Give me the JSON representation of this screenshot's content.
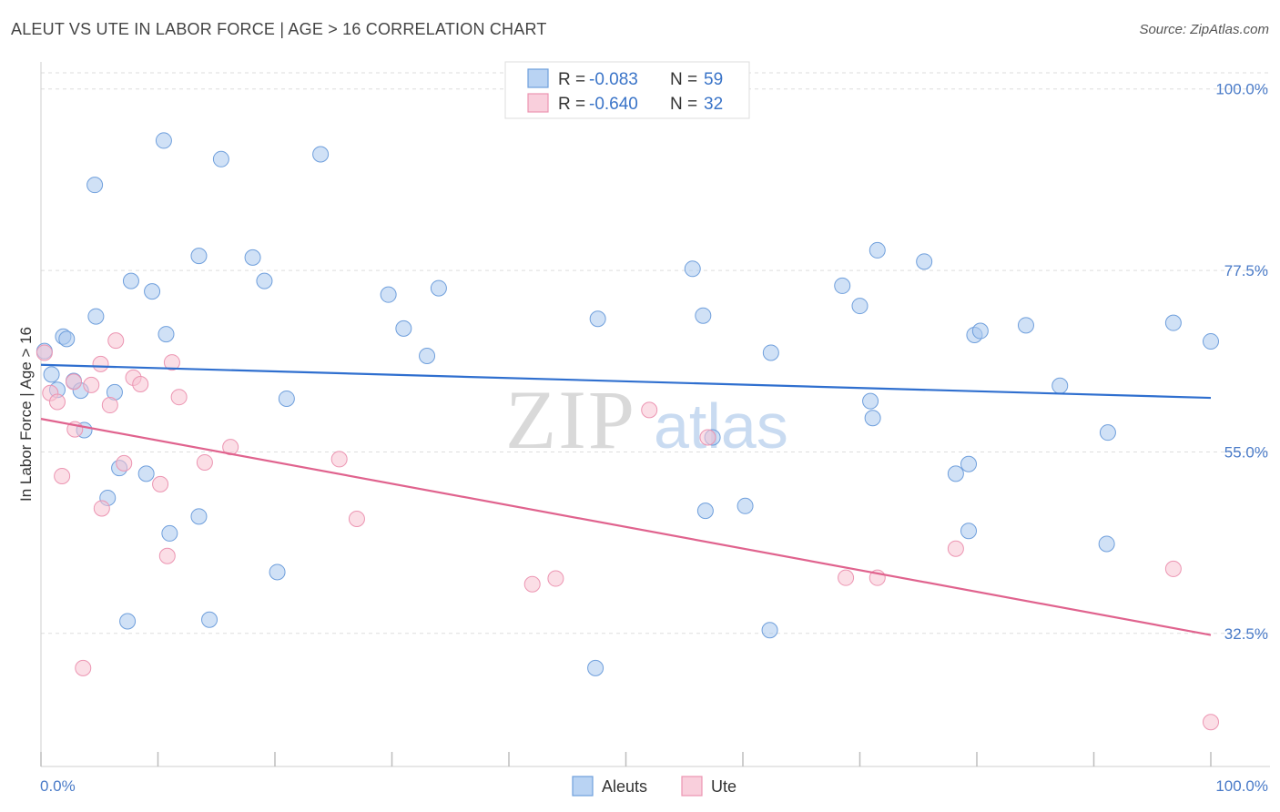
{
  "header": {
    "title": "ALEUT VS UTE IN LABOR FORCE | AGE > 16 CORRELATION CHART",
    "source": "Source: ZipAtlas.com"
  },
  "watermark": {
    "zip": "ZIP",
    "atlas": "atlas"
  },
  "chart_data": {
    "type": "scatter",
    "title": "ALEUT VS UTE IN LABOR FORCE | AGE > 16 CORRELATION CHART",
    "ylabel": "In Labor Force | Age > 16",
    "xlabel": "",
    "xlim": [
      0,
      100
    ],
    "ylim": [
      16,
      102
    ],
    "x_tick_labels": [
      "0.0%",
      "100.0%"
    ],
    "y_ticks": [
      32.5,
      55.0,
      77.5,
      100.0
    ],
    "y_tick_labels": [
      "32.5%",
      "55.0%",
      "77.5%",
      "100.0%"
    ],
    "grid": "horizontal dashed",
    "legend_position": "bottom-center",
    "stats_box": [
      {
        "r_label": "R =",
        "r_value": "-0.083",
        "n_label": "N =",
        "n_value": "59"
      },
      {
        "r_label": "R =",
        "r_value": "-0.640",
        "n_label": "N =",
        "n_value": "32"
      }
    ],
    "series": [
      {
        "name": "Aleuts",
        "color": "#a9c8ef",
        "stroke": "#6f9fdc",
        "line_color": "#2f6fcf",
        "trend": {
          "x": [
            0,
            100
          ],
          "y": [
            65.8,
            61.7
          ]
        },
        "points": [
          [
            0.3,
            67.5
          ],
          [
            0.9,
            64.6
          ],
          [
            1.4,
            62.7
          ],
          [
            1.9,
            69.3
          ],
          [
            2.2,
            69.0
          ],
          [
            2.8,
            63.8
          ],
          [
            3.4,
            62.6
          ],
          [
            3.7,
            57.7
          ],
          [
            4.6,
            88.1
          ],
          [
            4.7,
            71.8
          ],
          [
            5.7,
            49.3
          ],
          [
            6.3,
            62.4
          ],
          [
            6.7,
            53.0
          ],
          [
            7.4,
            34.0
          ],
          [
            7.7,
            76.2
          ],
          [
            9.0,
            52.3
          ],
          [
            9.5,
            74.9
          ],
          [
            10.7,
            69.6
          ],
          [
            10.5,
            93.6
          ],
          [
            11.0,
            44.9
          ],
          [
            13.5,
            47.0
          ],
          [
            13.5,
            79.3
          ],
          [
            14.4,
            34.2
          ],
          [
            15.4,
            91.3
          ],
          [
            18.1,
            79.1
          ],
          [
            19.1,
            76.2
          ],
          [
            20.2,
            40.1
          ],
          [
            21.0,
            61.6
          ],
          [
            23.9,
            91.9
          ],
          [
            29.7,
            74.5
          ],
          [
            31.0,
            70.3
          ],
          [
            33.0,
            66.9
          ],
          [
            34.0,
            75.3
          ],
          [
            47.6,
            71.5
          ],
          [
            47.4,
            28.2
          ],
          [
            55.7,
            77.7
          ],
          [
            56.6,
            71.9
          ],
          [
            56.8,
            47.7
          ],
          [
            57.4,
            56.8
          ],
          [
            60.2,
            48.3
          ],
          [
            62.3,
            32.9
          ],
          [
            62.4,
            67.3
          ],
          [
            68.5,
            75.6
          ],
          [
            70.0,
            73.1
          ],
          [
            70.9,
            61.3
          ],
          [
            71.1,
            59.2
          ],
          [
            71.5,
            80.0
          ],
          [
            75.5,
            78.6
          ],
          [
            79.8,
            69.5
          ],
          [
            80.3,
            70.0
          ],
          [
            79.3,
            45.2
          ],
          [
            78.2,
            52.3
          ],
          [
            79.3,
            53.5
          ],
          [
            84.2,
            70.7
          ],
          [
            87.1,
            63.2
          ],
          [
            91.1,
            43.6
          ],
          [
            91.2,
            57.4
          ],
          [
            96.8,
            71.0
          ],
          [
            100.0,
            68.7
          ]
        ]
      },
      {
        "name": "Ute",
        "color": "#f7c2d2",
        "stroke": "#ec95b2",
        "line_color": "#e0638e",
        "trend": {
          "x": [
            0,
            100
          ],
          "y": [
            59.1,
            32.3
          ]
        },
        "points": [
          [
            0.3,
            67.3
          ],
          [
            0.8,
            62.3
          ],
          [
            1.4,
            61.2
          ],
          [
            1.8,
            52.0
          ],
          [
            2.8,
            63.7
          ],
          [
            2.9,
            57.8
          ],
          [
            3.6,
            28.2
          ],
          [
            4.3,
            63.3
          ],
          [
            5.1,
            65.9
          ],
          [
            5.2,
            48.0
          ],
          [
            5.9,
            60.8
          ],
          [
            6.4,
            68.8
          ],
          [
            7.1,
            53.6
          ],
          [
            7.9,
            64.2
          ],
          [
            8.5,
            63.4
          ],
          [
            10.2,
            51.0
          ],
          [
            10.8,
            42.1
          ],
          [
            11.2,
            66.1
          ],
          [
            11.8,
            61.8
          ],
          [
            14.0,
            53.7
          ],
          [
            16.2,
            55.6
          ],
          [
            25.5,
            54.1
          ],
          [
            27.0,
            46.7
          ],
          [
            42.0,
            38.6
          ],
          [
            44.0,
            39.3
          ],
          [
            52.0,
            60.2
          ],
          [
            57.0,
            56.8
          ],
          [
            68.8,
            39.4
          ],
          [
            71.5,
            39.4
          ],
          [
            78.2,
            43.0
          ],
          [
            96.8,
            40.5
          ],
          [
            100.0,
            21.5
          ]
        ]
      }
    ]
  }
}
